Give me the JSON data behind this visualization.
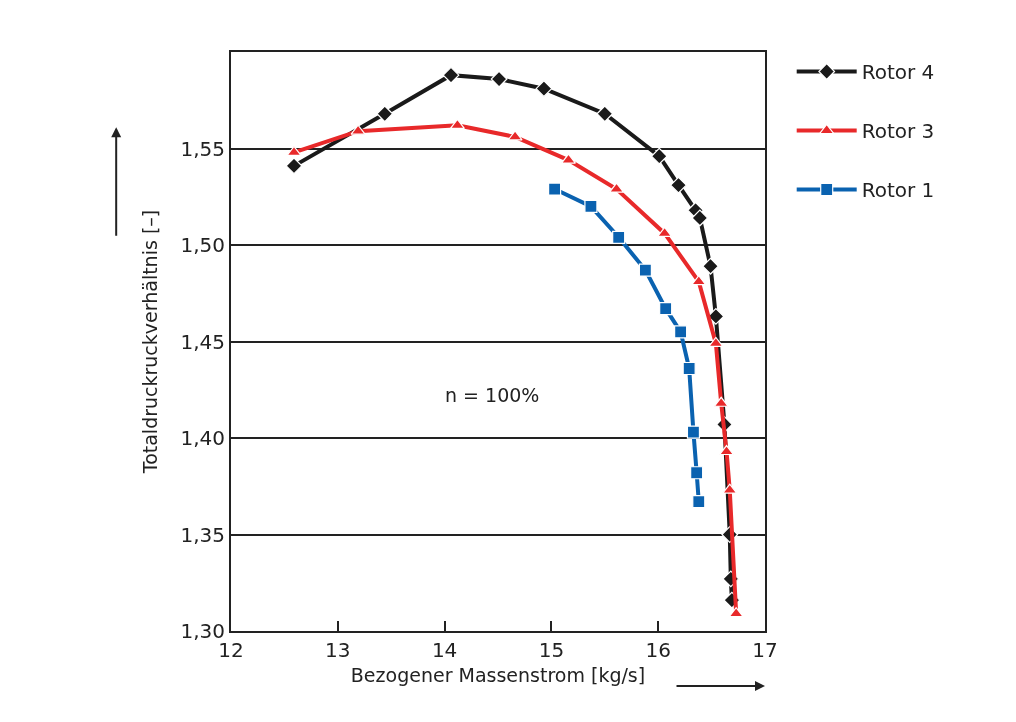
{
  "chart_data": {
    "type": "line",
    "xlabel": "Bezogener Massenstrom [kg/s]",
    "ylabel": "Totaldruckruckverhältnis [–]",
    "annotations": [
      "n = 100%"
    ],
    "xlim": [
      12,
      17
    ],
    "xticks": [
      12,
      13,
      14,
      15,
      16,
      17
    ],
    "ylim": [
      1.3,
      1.6
    ],
    "yticks": [
      {
        "value": 1.3,
        "label": "1,30"
      },
      {
        "value": 1.35,
        "label": "1,35"
      },
      {
        "value": 1.4,
        "label": "1,40"
      },
      {
        "value": 1.45,
        "label": "1,45"
      },
      {
        "value": 1.5,
        "label": "1,50"
      },
      {
        "value": 1.55,
        "label": "1,55"
      }
    ],
    "grid": "y",
    "legend": "top right",
    "line_style": "solid",
    "series": [
      {
        "name": "Rotor 4",
        "color": "#1a1a1a",
        "marker": "diamond",
        "x": [
          12.59,
          13.44,
          14.06,
          14.51,
          14.93,
          15.5,
          16.01,
          16.19,
          16.35,
          16.39,
          16.49,
          16.54,
          16.62,
          16.67,
          16.68,
          16.69
        ],
        "values": [
          1.541,
          1.568,
          1.588,
          1.586,
          1.581,
          1.568,
          1.546,
          1.531,
          1.518,
          1.514,
          1.489,
          1.463,
          1.407,
          1.35,
          1.327,
          1.316
        ]
      },
      {
        "name": "Rotor 3",
        "color": "#e8292a",
        "marker": "triangle",
        "x": [
          12.59,
          13.19,
          14.12,
          14.66,
          15.16,
          15.61,
          16.06,
          16.38,
          16.54,
          16.59,
          16.64,
          16.67,
          16.73
        ],
        "values": [
          1.548,
          1.559,
          1.562,
          1.556,
          1.544,
          1.529,
          1.506,
          1.481,
          1.449,
          1.418,
          1.393,
          1.373,
          1.309
        ]
      },
      {
        "name": "Rotor 1",
        "color": "#0a62b0",
        "marker": "square",
        "x": [
          15.03,
          15.37,
          15.63,
          15.88,
          16.07,
          16.21,
          16.29,
          16.33,
          16.36,
          16.38
        ],
        "values": [
          1.529,
          1.52,
          1.504,
          1.487,
          1.467,
          1.455,
          1.436,
          1.403,
          1.382,
          1.367
        ]
      }
    ]
  }
}
